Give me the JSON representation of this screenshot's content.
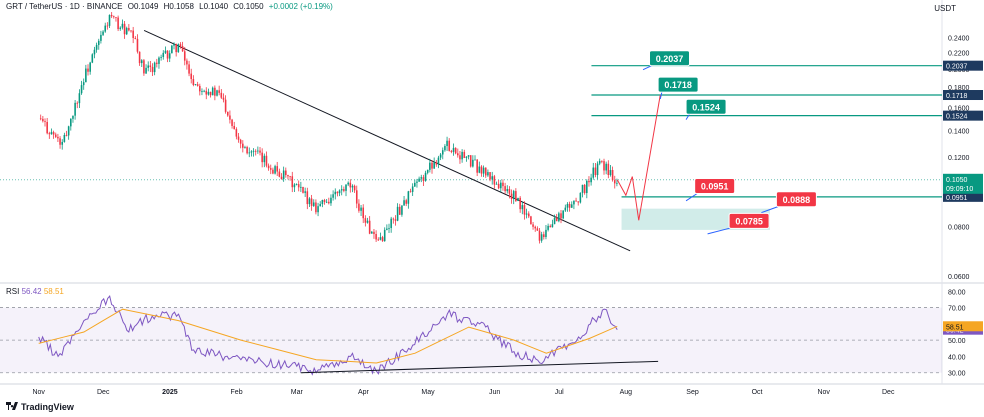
{
  "header": {
    "symbol": "GRT / TetherUS · 1D · BINANCE",
    "open": "O0.1049",
    "high": "H0.1058",
    "low": "L0.1040",
    "close": "C0.1050",
    "change": "+0.0002 (+0.19%)",
    "unit": "USDT"
  },
  "rsi_header": {
    "label": "RSI",
    "value1": "56.42",
    "value2": "58.51"
  },
  "branding": {
    "text": "TradingView"
  },
  "colors": {
    "up": "#089981",
    "down": "#f23645",
    "rsi": "#7e57c2",
    "rsi_ma": "#f5a623",
    "level": "#089981",
    "zone": "#b2dfdb"
  },
  "chart_data": [
    {
      "type": "candlestick",
      "title": "GRT / TetherUS · 1D · BINANCE",
      "y_axis": {
        "scale": "log",
        "ticks": [
          "0.2400",
          "0.2200",
          "0.2000",
          "0.1800",
          "0.1600",
          "0.1400",
          "0.1200",
          "0.1000",
          "0.0800",
          "0.0600"
        ],
        "ylim": [
          0.058,
          0.275
        ]
      },
      "x_axis": {
        "ticks": [
          "Nov",
          "Dec",
          "2025",
          "Feb",
          "Mar",
          "Apr",
          "May",
          "Jun",
          "Jul",
          "Aug",
          "Sep",
          "Oct",
          "Nov",
          "Dec"
        ]
      },
      "price_path": [
        {
          "date": "2024-11-01",
          "price": 0.15
        },
        {
          "date": "2024-11-12",
          "price": 0.128
        },
        {
          "date": "2024-11-22",
          "price": 0.19
        },
        {
          "date": "2024-12-04",
          "price": 0.27
        },
        {
          "date": "2024-12-15",
          "price": 0.24
        },
        {
          "date": "2024-12-20",
          "price": 0.195
        },
        {
          "date": "2025-01-05",
          "price": 0.23
        },
        {
          "date": "2025-01-12",
          "price": 0.185
        },
        {
          "date": "2025-01-25",
          "price": 0.17
        },
        {
          "date": "2025-02-03",
          "price": 0.13
        },
        {
          "date": "2025-02-25",
          "price": 0.105
        },
        {
          "date": "2025-03-10",
          "price": 0.09
        },
        {
          "date": "2025-03-26",
          "price": 0.101
        },
        {
          "date": "2025-04-07",
          "price": 0.072
        },
        {
          "date": "2025-04-22",
          "price": 0.096
        },
        {
          "date": "2025-05-10",
          "price": 0.129
        },
        {
          "date": "2025-05-25",
          "price": 0.112
        },
        {
          "date": "2025-06-10",
          "price": 0.095
        },
        {
          "date": "2025-06-22",
          "price": 0.076
        },
        {
          "date": "2025-07-10",
          "price": 0.095
        },
        {
          "date": "2025-07-20",
          "price": 0.116
        },
        {
          "date": "2025-07-28",
          "price": 0.105
        }
      ],
      "last_price": {
        "value": "0.1050",
        "countdown": "09:09:10"
      },
      "levels": [
        {
          "value": 0.2037,
          "label": "0.2037"
        },
        {
          "value": 0.1718,
          "label": "0.1718"
        },
        {
          "value": 0.1524,
          "label": "0.1524"
        },
        {
          "value": 0.0951,
          "label": "0.0951"
        }
      ],
      "callouts": [
        {
          "label": "0.2037",
          "color": "green"
        },
        {
          "label": "0.1718",
          "color": "green"
        },
        {
          "label": "0.1524",
          "color": "green"
        },
        {
          "label": "0.0951",
          "color": "red"
        },
        {
          "label": "0.0888",
          "color": "red"
        },
        {
          "label": "0.0785",
          "color": "red"
        }
      ],
      "support_zone": {
        "from": 0.0785,
        "to": 0.0888
      },
      "trendline": {
        "from": {
          "date": "2024-12-20",
          "price": 0.25
        },
        "to": {
          "date": "2025-08-03",
          "price": 0.0695
        }
      },
      "projection": [
        {
          "date": "2025-07-28",
          "price": 0.105
        },
        {
          "date": "2025-08-01",
          "price": 0.096
        },
        {
          "date": "2025-08-04",
          "price": 0.107
        },
        {
          "date": "2025-08-07",
          "price": 0.083
        },
        {
          "date": "2025-08-17",
          "price": 0.1718
        }
      ]
    },
    {
      "type": "line",
      "title": "RSI",
      "y_axis": {
        "ticks": [
          "80.00",
          "70.00",
          "50.00",
          "40.00",
          "30.00"
        ],
        "ylim": [
          28,
          82
        ]
      },
      "band": [
        30,
        70
      ],
      "series": [
        {
          "name": "RSI",
          "last": "56.42",
          "values": [
            {
              "date": "2024-11-01",
              "v": 52
            },
            {
              "date": "2024-11-10",
              "v": 40
            },
            {
              "date": "2024-11-22",
              "v": 62
            },
            {
              "date": "2024-12-04",
              "v": 77
            },
            {
              "date": "2024-12-12",
              "v": 56
            },
            {
              "date": "2024-12-20",
              "v": 63
            },
            {
              "date": "2025-01-05",
              "v": 66
            },
            {
              "date": "2025-01-12",
              "v": 44
            },
            {
              "date": "2025-02-03",
              "v": 38
            },
            {
              "date": "2025-03-01",
              "v": 34
            },
            {
              "date": "2025-03-10",
              "v": 30
            },
            {
              "date": "2025-03-26",
              "v": 40
            },
            {
              "date": "2025-04-07",
              "v": 31
            },
            {
              "date": "2025-04-22",
              "v": 45
            },
            {
              "date": "2025-05-10",
              "v": 66
            },
            {
              "date": "2025-05-25",
              "v": 60
            },
            {
              "date": "2025-06-10",
              "v": 43
            },
            {
              "date": "2025-06-22",
              "v": 36
            },
            {
              "date": "2025-07-10",
              "v": 52
            },
            {
              "date": "2025-07-22",
              "v": 69
            },
            {
              "date": "2025-07-28",
              "v": 56.42
            }
          ]
        },
        {
          "name": "RSI MA",
          "last": "58.51",
          "values": [
            {
              "date": "2024-11-01",
              "v": 48
            },
            {
              "date": "2024-11-22",
              "v": 55
            },
            {
              "date": "2024-12-10",
              "v": 69
            },
            {
              "date": "2025-01-05",
              "v": 62
            },
            {
              "date": "2025-02-03",
              "v": 50
            },
            {
              "date": "2025-03-10",
              "v": 38
            },
            {
              "date": "2025-04-07",
              "v": 36
            },
            {
              "date": "2025-04-25",
              "v": 42
            },
            {
              "date": "2025-05-20",
              "v": 58
            },
            {
              "date": "2025-06-10",
              "v": 50
            },
            {
              "date": "2025-06-25",
              "v": 42
            },
            {
              "date": "2025-07-15",
              "v": 51
            },
            {
              "date": "2025-07-28",
              "v": 58.51
            }
          ]
        }
      ],
      "divergence_line": {
        "from": {
          "date": "2025-03-03",
          "v": 30
        },
        "to": {
          "date": "2025-08-16",
          "v": 37
        }
      }
    }
  ]
}
